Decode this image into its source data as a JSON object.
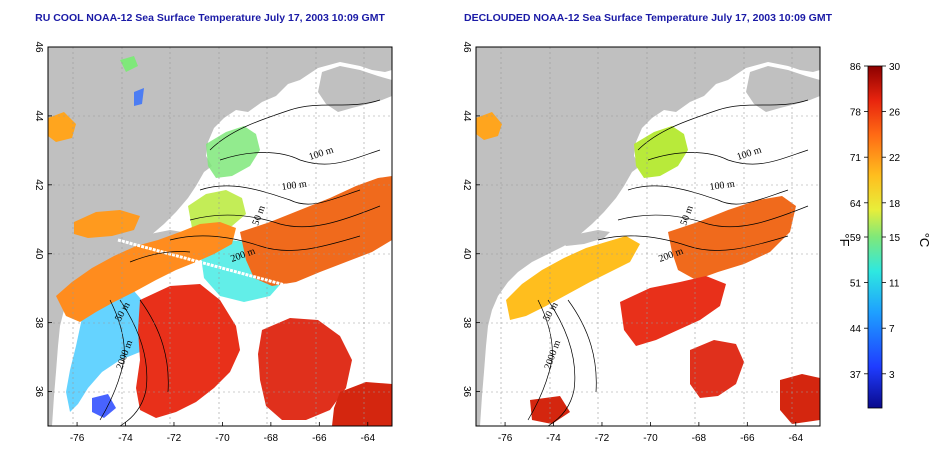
{
  "left_panel": {
    "title": "RU COOL NOAA-12 Sea Surface Temperature July 17, 2003 10:09 GMT",
    "contour_labels": [
      "100 m",
      "100 m",
      "50 m",
      "200 m",
      "50 m",
      "2000 m"
    ]
  },
  "right_panel": {
    "title": "DECLOUDED NOAA-12 Sea Surface Temperature July 17, 2003 10:09 GMT",
    "contour_labels": [
      "100 m",
      "100 m",
      "50 m",
      "200 m",
      "50 m",
      "2000 m"
    ]
  },
  "axes": {
    "x_ticks": [
      "-76",
      "-74",
      "-72",
      "-70",
      "-68",
      "-66",
      "-64"
    ],
    "y_ticks": [
      "36",
      "38",
      "40",
      "42",
      "44",
      "46"
    ],
    "x_range": [
      -77.2,
      -63.0
    ],
    "y_range": [
      35.0,
      46.0
    ]
  },
  "colorbar": {
    "fahrenheit_ticks": [
      "86",
      "78",
      "71",
      "64",
      "59",
      "51",
      "44",
      "37"
    ],
    "celsius_ticks": [
      "30",
      "26",
      "22",
      "18",
      "15",
      "11",
      "7",
      "3"
    ],
    "fahrenheit_unit": "°F",
    "celsius_unit": "°C",
    "range_celsius": [
      0,
      30
    ]
  },
  "colors": {
    "land": "#c0c0c0",
    "title": "#1a1aa6",
    "warm": "#e0301c",
    "cold": "#1a3cff"
  }
}
